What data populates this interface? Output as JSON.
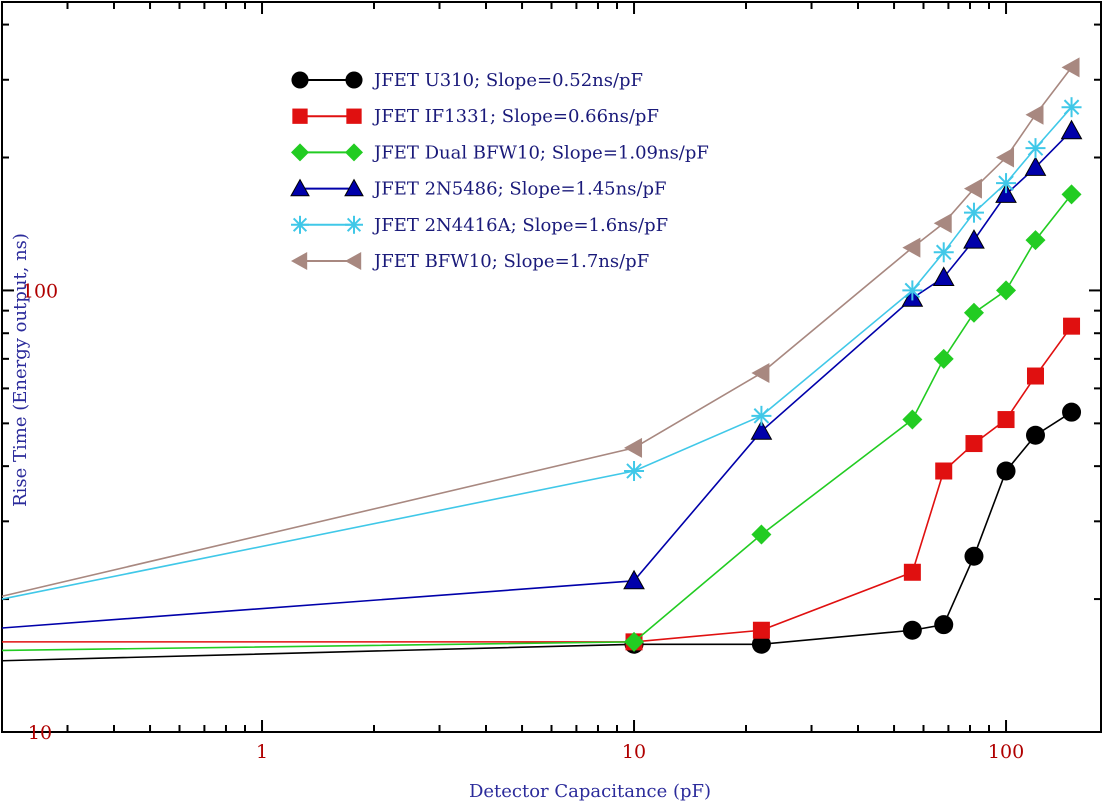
{
  "chart_data": {
    "type": "line",
    "xscale": "log",
    "yscale": "log",
    "xlabel": "Detector Capacitance (pF)",
    "ylabel": "Rise Time (Energy output, ns)",
    "xlim": [
      0.2,
      180
    ],
    "ylim": [
      10,
      450
    ],
    "x_tick_labels": [
      {
        "value": 1,
        "label": "1"
      },
      {
        "value": 10,
        "label": "10"
      },
      {
        "value": 100,
        "label": "100"
      }
    ],
    "y_tick_labels": [
      {
        "value": 10,
        "label": "10"
      },
      {
        "value": 100,
        "label": "100"
      }
    ],
    "legend_position": "top-left",
    "grid": false,
    "series": [
      {
        "name": "JFET U310; Slope=0.52ns/pF",
        "color": "#000000",
        "marker": "circle",
        "x": [
          0.2,
          10,
          22,
          56,
          68,
          82,
          100,
          120,
          150
        ],
        "y": [
          14.5,
          15.8,
          15.8,
          17,
          17.5,
          25,
          39,
          47,
          53
        ]
      },
      {
        "name": "JFET IF1331; Slope=0.66ns/pF",
        "color": "#e01010",
        "marker": "square",
        "x": [
          0.2,
          10,
          22,
          56,
          68,
          82,
          100,
          120,
          150
        ],
        "y": [
          16,
          16,
          17,
          23,
          39,
          45,
          51,
          64,
          83
        ]
      },
      {
        "name": "JFET Dual BFW10; Slope=1.09ns/pF",
        "color": "#22cc22",
        "marker": "diamond",
        "x": [
          0.2,
          10,
          22,
          56,
          68,
          82,
          100,
          120,
          150
        ],
        "y": [
          15.3,
          16,
          28,
          51,
          70,
          89,
          100,
          130,
          165
        ]
      },
      {
        "name": "JFET 2N5486; Slope=1.45ns/pF",
        "color": "#0000aa",
        "marker": "triangle-up",
        "x": [
          0.2,
          10,
          22,
          56,
          68,
          82,
          100,
          120,
          150
        ],
        "y": [
          17.2,
          22,
          48,
          96,
          107,
          130,
          165,
          190,
          230
        ]
      },
      {
        "name": "JFET 2N4416A; Slope=1.6ns/pF",
        "color": "#40c8e8",
        "marker": "star",
        "x": [
          0.2,
          10,
          22,
          56,
          68,
          82,
          100,
          120,
          150
        ],
        "y": [
          20,
          39,
          52,
          100,
          122,
          150,
          175,
          210,
          260
        ]
      },
      {
        "name": "JFET BFW10; Slope=1.7ns/pF",
        "color": "#a88880",
        "marker": "triangle-left",
        "x": [
          0.2,
          10,
          22,
          56,
          68,
          82,
          100,
          120,
          150
        ],
        "y": [
          20.3,
          44,
          65,
          125,
          142,
          170,
          200,
          250,
          320
        ]
      }
    ]
  }
}
